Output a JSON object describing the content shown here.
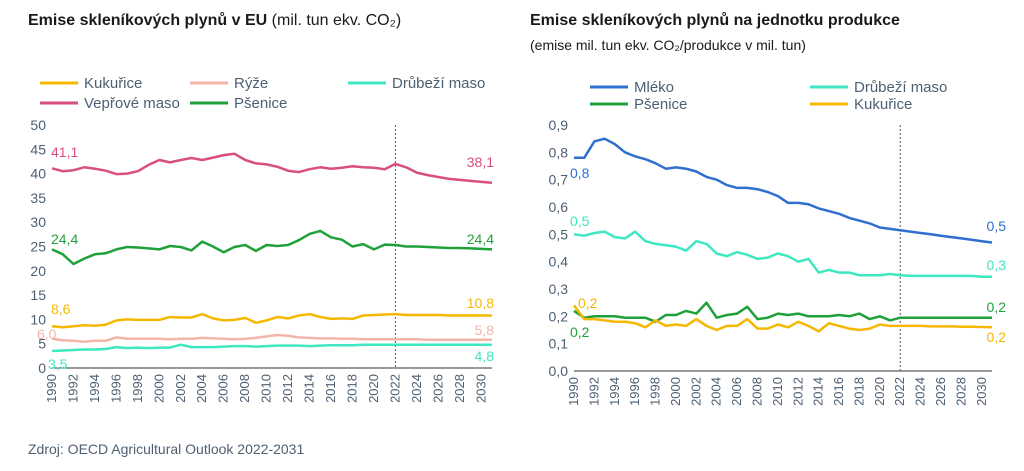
{
  "left_title": {
    "main": "Emise skleníkových plynů v EU",
    "unit": "(mil. tun ekv. CO₂)"
  },
  "right_title": {
    "main": "Emise skleníkových plynů na jednotku produkce",
    "subtitle": "(emise mil. tun ekv. CO₂/produkce v mil. tun)"
  },
  "source": "Zdroj: OECD Agricultural Outlook 2022-2031",
  "colors": {
    "kukurice": "#f5b800",
    "ryze": "#f4b5a9",
    "drubezi": "#3de8c2",
    "veprove": "#d94f7d",
    "psenice": "#1fa13a",
    "mleko": "#2f6fcf",
    "axis_text": "#4d5f72",
    "separator": "#555555"
  },
  "chart_data": [
    {
      "type": "line",
      "title": "Emise skleníkových plynů v EU",
      "ylim": [
        0,
        50
      ],
      "yticks": [
        "0",
        "5",
        "10",
        "15",
        "20",
        "25",
        "30",
        "35",
        "40",
        "45",
        "50"
      ],
      "x": [
        1990,
        1991,
        1992,
        1993,
        1994,
        1995,
        1996,
        1997,
        1998,
        1999,
        2000,
        2001,
        2002,
        2003,
        2004,
        2005,
        2006,
        2007,
        2008,
        2009,
        2010,
        2011,
        2012,
        2013,
        2014,
        2015,
        2016,
        2017,
        2018,
        2019,
        2020,
        2021,
        2022,
        2023,
        2024,
        2025,
        2026,
        2027,
        2028,
        2029,
        2030,
        2031
      ],
      "xticks": [
        "1990",
        "1992",
        "1994",
        "1996",
        "1998",
        "2000",
        "2002",
        "2004",
        "2006",
        "2008",
        "2010",
        "2012",
        "2014",
        "2016",
        "2018",
        "2020",
        "2022",
        "2024",
        "2026",
        "2028",
        "2030"
      ],
      "projection_start": 2022,
      "legend": [
        {
          "name": "Kukuřice",
          "color": "#f5b800"
        },
        {
          "name": "Rýže",
          "color": "#f4b5a9"
        },
        {
          "name": "Drůbeží maso",
          "color": "#3de8c2"
        },
        {
          "name": "Vepřové maso",
          "color": "#d94f7d"
        },
        {
          "name": "Pšenice",
          "color": "#1fa13a"
        }
      ],
      "series": [
        {
          "name": "Vepřové maso",
          "color": "#d94f7d",
          "start_label": "41,1",
          "end_label": "38,1",
          "values": [
            41.1,
            40.5,
            40.7,
            41.3,
            41.0,
            40.6,
            39.9,
            40.0,
            40.5,
            41.8,
            42.8,
            42.3,
            42.8,
            43.2,
            42.8,
            43.3,
            43.8,
            44.1,
            42.8,
            42.1,
            41.9,
            41.4,
            40.6,
            40.3,
            40.9,
            41.3,
            41.0,
            41.2,
            41.5,
            41.3,
            41.2,
            40.9,
            42.0,
            41.3,
            40.2,
            39.7,
            39.3,
            38.9,
            38.7,
            38.5,
            38.3,
            38.1
          ]
        },
        {
          "name": "Pšenice",
          "color": "#1fa13a",
          "start_label": "24,4",
          "end_label": "24,4",
          "values": [
            24.4,
            23.4,
            21.4,
            22.5,
            23.4,
            23.6,
            24.4,
            24.9,
            24.8,
            24.6,
            24.4,
            25.1,
            24.9,
            24.2,
            26.0,
            25.0,
            23.8,
            24.9,
            25.3,
            24.1,
            25.3,
            25.1,
            25.3,
            26.3,
            27.6,
            28.2,
            26.9,
            26.4,
            25.0,
            25.5,
            24.4,
            25.4,
            25.3,
            25.0,
            25.0,
            24.9,
            24.8,
            24.7,
            24.7,
            24.6,
            24.5,
            24.4
          ]
        },
        {
          "name": "Kukuřice",
          "color": "#f5b800",
          "start_label": "8,6",
          "end_label": "10,8",
          "values": [
            8.6,
            8.4,
            8.6,
            8.8,
            8.7,
            8.9,
            9.8,
            10.0,
            9.9,
            9.9,
            9.9,
            10.5,
            10.4,
            10.4,
            11.1,
            10.2,
            9.8,
            9.9,
            10.3,
            9.3,
            9.8,
            10.5,
            10.2,
            10.8,
            11.1,
            10.5,
            10.1,
            10.2,
            10.1,
            10.8,
            10.9,
            11.0,
            11.1,
            10.9,
            10.9,
            10.9,
            10.9,
            10.8,
            10.8,
            10.8,
            10.8,
            10.8
          ]
        },
        {
          "name": "Rýže",
          "color": "#f4b5a9",
          "start_label": "6,0",
          "end_label": "5,8",
          "values": [
            6.0,
            5.7,
            5.6,
            5.4,
            5.6,
            5.6,
            6.3,
            6.0,
            6.0,
            6.0,
            6.0,
            5.9,
            6.0,
            6.0,
            6.2,
            6.1,
            6.0,
            5.9,
            6.0,
            6.2,
            6.5,
            6.8,
            6.6,
            6.3,
            6.2,
            6.1,
            6.1,
            6.0,
            6.0,
            5.9,
            5.9,
            5.9,
            5.9,
            5.9,
            5.9,
            5.8,
            5.8,
            5.8,
            5.8,
            5.8,
            5.8,
            5.8
          ]
        },
        {
          "name": "Drůbeží maso",
          "color": "#3de8c2",
          "start_label": "3,5",
          "end_label": "4,8",
          "values": [
            3.5,
            3.6,
            3.7,
            3.8,
            3.8,
            3.9,
            4.3,
            4.1,
            4.2,
            4.1,
            4.2,
            4.2,
            4.8,
            4.3,
            4.3,
            4.3,
            4.4,
            4.5,
            4.5,
            4.4,
            4.5,
            4.6,
            4.6,
            4.6,
            4.5,
            4.6,
            4.7,
            4.7,
            4.7,
            4.8,
            4.8,
            4.8,
            4.8,
            4.8,
            4.8,
            4.8,
            4.8,
            4.8,
            4.8,
            4.8,
            4.8,
            4.8
          ]
        }
      ]
    },
    {
      "type": "line",
      "title": "Emise skleníkových plynů na jednotku produkce",
      "ylim": [
        0,
        0.9
      ],
      "yticks": [
        "0,0",
        "0,1",
        "0,2",
        "0,3",
        "0,4",
        "0,5",
        "0,6",
        "0,7",
        "0,8",
        "0,9"
      ],
      "x": [
        1990,
        1991,
        1992,
        1993,
        1994,
        1995,
        1996,
        1997,
        1998,
        1999,
        2000,
        2001,
        2002,
        2003,
        2004,
        2005,
        2006,
        2007,
        2008,
        2009,
        2010,
        2011,
        2012,
        2013,
        2014,
        2015,
        2016,
        2017,
        2018,
        2019,
        2020,
        2021,
        2022,
        2023,
        2024,
        2025,
        2026,
        2027,
        2028,
        2029,
        2030,
        2031
      ],
      "xticks": [
        "1990",
        "1992",
        "1994",
        "1996",
        "1998",
        "2000",
        "2002",
        "2004",
        "2006",
        "2008",
        "2010",
        "2012",
        "2014",
        "2016",
        "2018",
        "2020",
        "2022",
        "2024",
        "2026",
        "2028",
        "2030"
      ],
      "projection_start": 2022,
      "legend": [
        {
          "name": "Mléko",
          "color": "#2f6fcf"
        },
        {
          "name": "Drůbeží maso",
          "color": "#3de8c2"
        },
        {
          "name": "Pšenice",
          "color": "#1fa13a"
        },
        {
          "name": "Kukuřice",
          "color": "#f5b800"
        }
      ],
      "series": [
        {
          "name": "Mléko",
          "color": "#2f6fcf",
          "start_label": "0,8",
          "end_label": "0,5",
          "values": [
            0.78,
            0.78,
            0.84,
            0.85,
            0.83,
            0.8,
            0.785,
            0.775,
            0.76,
            0.74,
            0.745,
            0.74,
            0.73,
            0.71,
            0.7,
            0.68,
            0.67,
            0.67,
            0.665,
            0.655,
            0.64,
            0.615,
            0.615,
            0.61,
            0.595,
            0.585,
            0.575,
            0.56,
            0.55,
            0.54,
            0.525,
            0.52,
            0.515,
            0.51,
            0.505,
            0.5,
            0.495,
            0.49,
            0.485,
            0.48,
            0.475,
            0.47
          ]
        },
        {
          "name": "Drůbeží maso",
          "color": "#3de8c2",
          "start_label": "0,5",
          "end_label": "0,3",
          "values": [
            0.5,
            0.495,
            0.505,
            0.51,
            0.49,
            0.485,
            0.51,
            0.475,
            0.465,
            0.46,
            0.455,
            0.44,
            0.475,
            0.465,
            0.43,
            0.42,
            0.435,
            0.425,
            0.41,
            0.415,
            0.43,
            0.42,
            0.4,
            0.41,
            0.36,
            0.37,
            0.36,
            0.36,
            0.35,
            0.35,
            0.35,
            0.355,
            0.35,
            0.348,
            0.348,
            0.348,
            0.348,
            0.348,
            0.348,
            0.348,
            0.345,
            0.345
          ]
        },
        {
          "name": "Pšenice",
          "color": "#1fa13a",
          "start_label": "0,2",
          "end_label": "0,2",
          "values": [
            0.22,
            0.195,
            0.2,
            0.2,
            0.2,
            0.195,
            0.195,
            0.195,
            0.18,
            0.205,
            0.205,
            0.22,
            0.21,
            0.25,
            0.195,
            0.205,
            0.21,
            0.235,
            0.19,
            0.195,
            0.21,
            0.205,
            0.21,
            0.2,
            0.2,
            0.2,
            0.205,
            0.2,
            0.21,
            0.19,
            0.2,
            0.185,
            0.195,
            0.195,
            0.195,
            0.195,
            0.195,
            0.195,
            0.195,
            0.195,
            0.195,
            0.195
          ]
        },
        {
          "name": "Kukuřice",
          "color": "#f5b800",
          "start_label": "0,2",
          "end_label": "0,2",
          "values": [
            0.24,
            0.19,
            0.19,
            0.185,
            0.18,
            0.18,
            0.175,
            0.16,
            0.185,
            0.165,
            0.17,
            0.165,
            0.19,
            0.165,
            0.15,
            0.165,
            0.165,
            0.19,
            0.155,
            0.155,
            0.17,
            0.16,
            0.18,
            0.165,
            0.145,
            0.175,
            0.165,
            0.155,
            0.15,
            0.155,
            0.17,
            0.165,
            0.165,
            0.165,
            0.165,
            0.163,
            0.163,
            0.163,
            0.162,
            0.162,
            0.161,
            0.16
          ]
        }
      ]
    }
  ]
}
